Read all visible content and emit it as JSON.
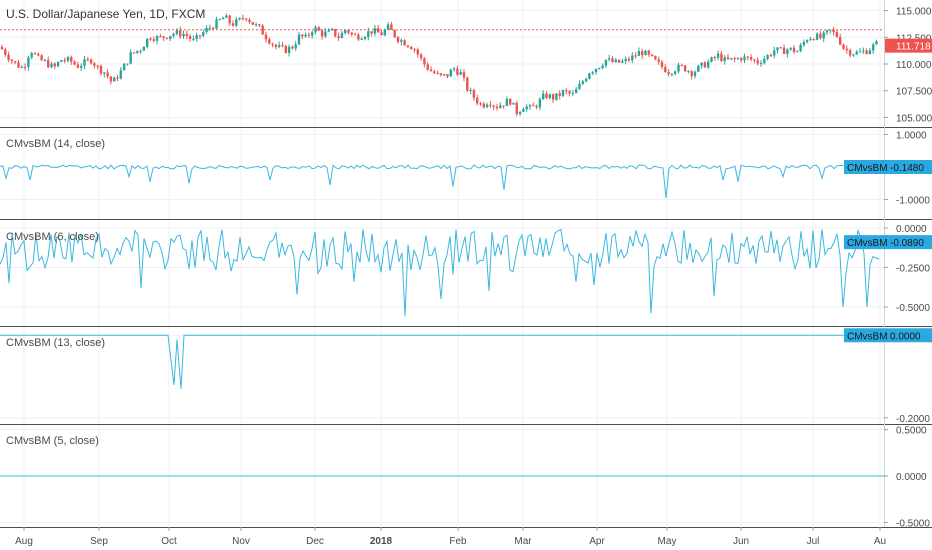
{
  "colors": {
    "up": "#26a69a",
    "down": "#ef5350",
    "indicator": "#4fc3f7",
    "indicator_line": "#3ab7e0",
    "badge": "#29a9e1",
    "grid": "#eef0f3",
    "separator": "#4d4d4d",
    "price_line": "#ef5350"
  },
  "chart_data": [
    {
      "type": "candlestick",
      "title": "U.S. Dollar/Japanese Yen, 1D, FXCM",
      "ylim": [
        104.2,
        115.8
      ],
      "y_ticks": [
        "115.000",
        "112.500",
        "110.000",
        "107.500",
        "105.000"
      ],
      "last_price": "111.718",
      "price_line_value": 113.2,
      "grid": true,
      "close_path": [
        [
          0,
          111.6
        ],
        [
          12,
          110.1
        ],
        [
          20,
          109.6
        ],
        [
          26,
          111.4
        ],
        [
          32,
          110.5
        ],
        [
          40,
          110.1
        ],
        [
          46,
          109.6
        ],
        [
          52,
          110.4
        ],
        [
          60,
          110.3
        ],
        [
          66,
          109.8
        ],
        [
          72,
          110.1
        ],
        [
          78,
          110.4
        ],
        [
          84,
          109.6
        ],
        [
          90,
          109.2
        ],
        [
          96,
          108.2
        ],
        [
          104,
          109.4
        ],
        [
          112,
          110.9
        ],
        [
          120,
          111.4
        ],
        [
          128,
          112.6
        ],
        [
          136,
          112.4
        ],
        [
          144,
          112.7
        ],
        [
          150,
          112.9
        ],
        [
          158,
          112.8
        ],
        [
          166,
          112.1
        ],
        [
          172,
          112.8
        ],
        [
          178,
          113.3
        ],
        [
          186,
          113.9
        ],
        [
          192,
          114.4
        ],
        [
          198,
          113.7
        ],
        [
          204,
          114.0
        ],
        [
          210,
          114.5
        ],
        [
          216,
          113.8
        ],
        [
          222,
          113.3
        ],
        [
          228,
          112.5
        ],
        [
          236,
          111.6
        ],
        [
          244,
          111.3
        ],
        [
          250,
          111.6
        ],
        [
          256,
          112.6
        ],
        [
          262,
          112.4
        ],
        [
          268,
          113.4
        ],
        [
          276,
          112.8
        ],
        [
          284,
          113.0
        ],
        [
          290,
          112.5
        ],
        [
          296,
          113.3
        ],
        [
          302,
          112.6
        ],
        [
          310,
          112.7
        ],
        [
          318,
          113.1
        ],
        [
          326,
          112.8
        ],
        [
          332,
          113.4
        ],
        [
          340,
          112.4
        ],
        [
          348,
          111.9
        ],
        [
          354,
          111.5
        ],
        [
          362,
          110.1
        ],
        [
          368,
          109.4
        ],
        [
          376,
          108.8
        ],
        [
          382,
          108.9
        ],
        [
          388,
          109.6
        ],
        [
          394,
          109.1
        ],
        [
          400,
          107.6
        ],
        [
          406,
          106.8
        ],
        [
          412,
          106.1
        ],
        [
          418,
          106.6
        ],
        [
          424,
          106.0
        ],
        [
          430,
          106.3
        ],
        [
          436,
          106.6
        ],
        [
          442,
          105.5
        ],
        [
          448,
          106.1
        ],
        [
          454,
          105.8
        ],
        [
          460,
          106.3
        ],
        [
          466,
          107.1
        ],
        [
          474,
          106.8
        ],
        [
          482,
          107.4
        ],
        [
          490,
          107.1
        ],
        [
          496,
          108.0
        ],
        [
          504,
          109.3
        ],
        [
          512,
          109.8
        ],
        [
          518,
          110.4
        ],
        [
          526,
          110.1
        ],
        [
          534,
          110.2
        ],
        [
          542,
          110.7
        ],
        [
          548,
          111.2
        ],
        [
          556,
          110.6
        ],
        [
          564,
          109.9
        ],
        [
          572,
          109.3
        ],
        [
          578,
          109.6
        ],
        [
          584,
          109.7
        ],
        [
          592,
          109.2
        ],
        [
          600,
          109.8
        ],
        [
          608,
          110.3
        ],
        [
          614,
          110.8
        ],
        [
          620,
          110.3
        ],
        [
          628,
          110.4
        ],
        [
          634,
          110.6
        ],
        [
          640,
          110.5
        ],
        [
          648,
          110.2
        ],
        [
          656,
          110.7
        ],
        [
          662,
          111.3
        ],
        [
          668,
          111.2
        ],
        [
          674,
          111.4
        ],
        [
          682,
          111.2
        ],
        [
          690,
          112.4
        ],
        [
          696,
          112.6
        ],
        [
          702,
          112.4
        ],
        [
          710,
          113.1
        ],
        [
          716,
          112.6
        ],
        [
          722,
          111.4
        ],
        [
          728,
          111.1
        ],
        [
          734,
          111.0
        ],
        [
          742,
          111.3
        ],
        [
          750,
          111.9
        ]
      ]
    },
    {
      "type": "line",
      "title": "CMvsBM (14, close)",
      "ylim": [
        -1.6,
        1.2
      ],
      "y_ticks": [
        "1.0000",
        "-1.0000"
      ],
      "baseline": 0.0,
      "series": [
        {
          "name": "CMvsBM",
          "last_value": "-0.1480"
        }
      ],
      "dips": [
        [
          5,
          -0.35
        ],
        [
          30,
          -0.4
        ],
        [
          128,
          -0.3
        ],
        [
          150,
          -0.45
        ],
        [
          190,
          -0.5
        ],
        [
          270,
          -0.4
        ],
        [
          330,
          -0.55
        ],
        [
          452,
          -0.6
        ],
        [
          505,
          -0.7
        ],
        [
          665,
          -0.95
        ],
        [
          722,
          -0.4
        ],
        [
          737,
          -0.45
        ],
        [
          783,
          -0.3
        ],
        [
          822,
          -0.35
        ]
      ]
    },
    {
      "type": "line",
      "title": "CMvsBM (6, close)",
      "ylim": [
        -0.62,
        0.05
      ],
      "y_ticks": [
        "0.0000",
        "-0.2500",
        "-0.5000"
      ],
      "baseline": -0.06,
      "series": [
        {
          "name": "CMvsBM",
          "last_value": "-0.0890"
        }
      ],
      "dips": [
        [
          9,
          -0.35
        ],
        [
          140,
          -0.38
        ],
        [
          298,
          -0.42
        ],
        [
          353,
          -0.34
        ],
        [
          406,
          -0.56
        ],
        [
          441,
          -0.45
        ],
        [
          489,
          -0.4
        ],
        [
          577,
          -0.34
        ],
        [
          594,
          -0.36
        ],
        [
          651,
          -0.54
        ],
        [
          714,
          -0.43
        ],
        [
          843,
          -0.5
        ],
        [
          866,
          -0.5
        ]
      ]
    },
    {
      "type": "line",
      "title": "CMvsBM (13, close)",
      "ylim": [
        -0.215,
        0.02
      ],
      "y_ticks": [
        "0.0000",
        "-0.2000"
      ],
      "baseline": 0.0,
      "series": [
        {
          "name": "CMvsBM",
          "last_value": "0.0000"
        }
      ],
      "dips": [
        [
          168,
          0.0
        ],
        [
          174,
          -0.12
        ],
        [
          177,
          -0.01
        ],
        [
          181,
          -0.13
        ],
        [
          184,
          0.0
        ]
      ]
    },
    {
      "type": "line",
      "title": "CMvsBM (5, close)",
      "ylim": [
        -0.55,
        0.55
      ],
      "y_ticks": [
        "0.5000",
        "0.0000",
        "-0.5000"
      ],
      "baseline": 0.0,
      "series": [
        {
          "name": "CMvsBM"
        }
      ]
    }
  ],
  "time_axis": {
    "labels": [
      "Aug",
      "Sep",
      "Oct",
      "Nov",
      "Dec",
      "2018",
      "Feb",
      "Mar",
      "Apr",
      "May",
      "Jun",
      "Jul",
      "Au"
    ],
    "bold": [
      "2018"
    ]
  },
  "badge_label": "CMvsBM"
}
